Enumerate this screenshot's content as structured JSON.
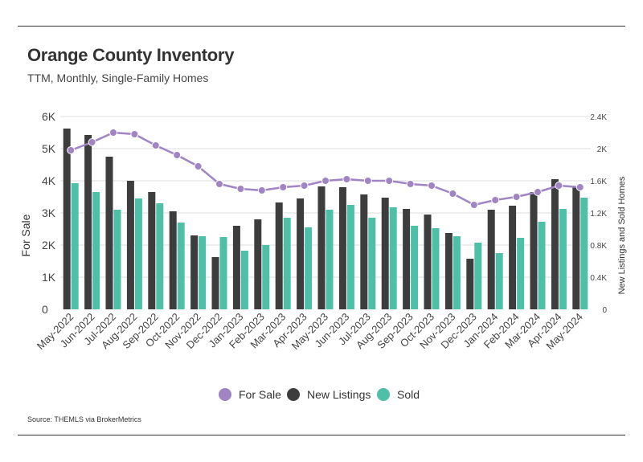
{
  "header": {
    "title": "Orange County Inventory",
    "subtitle": "TTM, Monthly, Single-Family Homes"
  },
  "footer": {
    "source": "Source:  THEMLS via BrokerMetrics"
  },
  "colors": {
    "for_sale": "#a084c4",
    "new_listings": "#3d3d3d",
    "sold": "#4fc0a8",
    "grid": "#dddddd"
  },
  "chart_data": {
    "type": "bar",
    "title": "Orange County Inventory",
    "subtitle": "TTM, Monthly, Single-Family Homes",
    "categories": [
      "May-2022",
      "Jun-2022",
      "Jul-2022",
      "Aug-2022",
      "Sep-2022",
      "Oct-2022",
      "Nov-2022",
      "Dec-2022",
      "Jan-2023",
      "Feb-2023",
      "Mar-2023",
      "Apr-2023",
      "May-2023",
      "Jun-2023",
      "Jul-2023",
      "Aug-2023",
      "Sep-2023",
      "Oct-2023",
      "Nov-2023",
      "Dec-2023",
      "Jan-2024",
      "Feb-2024",
      "Mar-2024",
      "Apr-2024",
      "May-2024"
    ],
    "ylabel_left": "For Sale",
    "ylabel_right": "New Listings and Sold Homes",
    "ylim_left": [
      0,
      6000
    ],
    "ylim_right": [
      0,
      2400
    ],
    "yticks_left": [
      "0",
      "1K",
      "2K",
      "3K",
      "4K",
      "5K",
      "6K"
    ],
    "yticks_right": [
      "0",
      "0.4K",
      "0.8K",
      "1.2K",
      "1.6K",
      "2K",
      "2.4K"
    ],
    "grid": true,
    "legend_position": "bottom",
    "series": [
      {
        "name": "For Sale",
        "type": "line",
        "axis": "left",
        "values": [
          4950,
          5200,
          5500,
          5450,
          5100,
          4800,
          4450,
          3900,
          3750,
          3700,
          3800,
          3850,
          4000,
          4050,
          4000,
          4000,
          3900,
          3850,
          3600,
          3250,
          3400,
          3500,
          3650,
          3850,
          3800
        ]
      },
      {
        "name": "New Listings",
        "type": "bar",
        "axis": "right",
        "values": [
          2250,
          2170,
          1900,
          1600,
          1460,
          1220,
          920,
          650,
          1040,
          1120,
          1330,
          1380,
          1530,
          1520,
          1430,
          1390,
          1250,
          1180,
          950,
          630,
          1240,
          1290,
          1460,
          1620,
          1520
        ]
      },
      {
        "name": "Sold",
        "type": "bar",
        "axis": "right",
        "values": [
          1570,
          1460,
          1240,
          1380,
          1320,
          1080,
          910,
          900,
          730,
          800,
          1140,
          1020,
          1240,
          1300,
          1140,
          1270,
          1040,
          1010,
          910,
          830,
          700,
          890,
          1090,
          1250,
          1390
        ]
      }
    ]
  }
}
